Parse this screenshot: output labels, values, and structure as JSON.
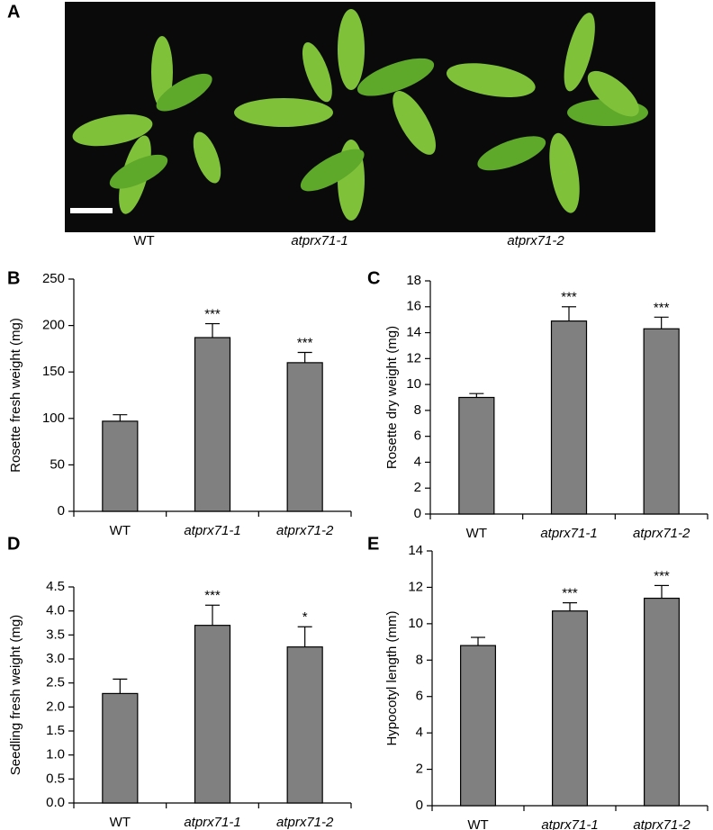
{
  "photo": {
    "label": "A",
    "captions": [
      "WT",
      "atprx71-1",
      "atprx71-2"
    ]
  },
  "chart_data": [
    {
      "type": "bar",
      "panel": "B",
      "ylabel": "Rosette fresh weight (mg)",
      "categories": [
        "WT",
        "atprx71-1",
        "atprx71-2"
      ],
      "values": [
        97,
        187,
        160
      ],
      "errors": [
        7,
        15,
        11
      ],
      "color": "#808080",
      "annotations": [
        {
          "x": "atprx71-1",
          "text": "***"
        },
        {
          "x": "atprx71-2",
          "text": "***"
        }
      ],
      "ylim": [
        0,
        250
      ],
      "yticks": [
        0,
        50,
        100,
        150,
        200,
        250
      ]
    },
    {
      "type": "bar",
      "panel": "C",
      "ylabel": "Rosette dry weight (mg)",
      "categories": [
        "WT",
        "atprx71-1",
        "atprx71-2"
      ],
      "values": [
        9.0,
        14.9,
        14.3
      ],
      "errors": [
        0.3,
        1.1,
        0.9
      ],
      "color": "#808080",
      "annotations": [
        {
          "x": "atprx71-1",
          "text": "***"
        },
        {
          "x": "atprx71-2",
          "text": "***"
        }
      ],
      "ylim": [
        0,
        18
      ],
      "yticks": [
        0,
        2,
        4,
        6,
        8,
        10,
        12,
        14,
        16,
        18
      ]
    },
    {
      "type": "bar",
      "panel": "D",
      "ylabel": "Seedling fresh weight (mg)",
      "categories": [
        "WT",
        "atprx71-1",
        "atprx71-2"
      ],
      "values": [
        2.28,
        3.7,
        3.25
      ],
      "errors": [
        0.3,
        0.42,
        0.42
      ],
      "color": "#808080",
      "annotations": [
        {
          "x": "atprx71-1",
          "text": "***"
        },
        {
          "x": "atprx71-2",
          "text": "*"
        }
      ],
      "ylim": [
        0,
        4.5
      ],
      "yticks": [
        {
          "value": 0,
          "label": "0.0"
        },
        0.5,
        {
          "value": 1,
          "label": "1.0"
        },
        1.5,
        {
          "value": 2,
          "label": "2.0"
        },
        2.5,
        {
          "value": 3,
          "label": "3.0"
        },
        3.5,
        {
          "value": 4,
          "label": "4.0"
        },
        4.5
      ]
    },
    {
      "type": "bar",
      "panel": "E",
      "ylabel": "Hypocotyl length (mm)",
      "categories": [
        "WT",
        "atprx71-1",
        "atprx71-2"
      ],
      "values": [
        8.8,
        10.7,
        11.4
      ],
      "errors": [
        0.45,
        0.45,
        0.7
      ],
      "color": "#808080",
      "annotations": [
        {
          "x": "atprx71-1",
          "text": "***"
        },
        {
          "x": "atprx71-2",
          "text": "***"
        }
      ],
      "ylim": [
        0,
        14
      ],
      "yticks": [
        0,
        2,
        4,
        6,
        8,
        10,
        12,
        14
      ]
    }
  ]
}
